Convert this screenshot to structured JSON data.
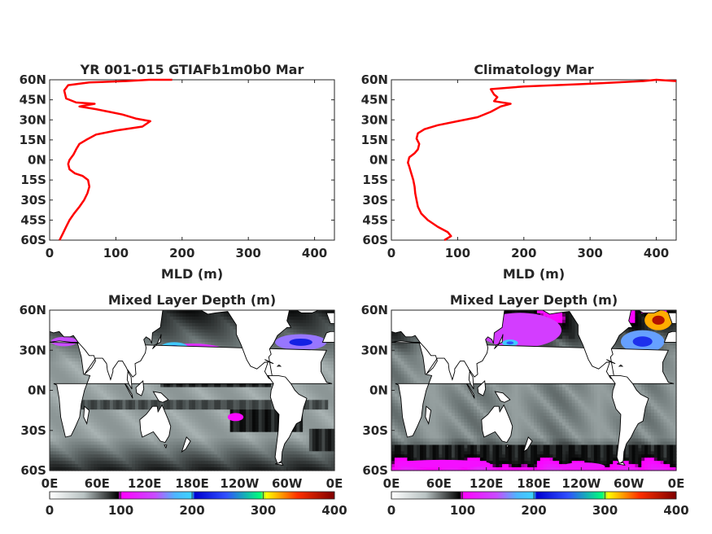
{
  "chart_data": [
    {
      "type": "line",
      "title": "YR 001-015 GTIAFb1m0b0 Mar",
      "xlabel": "MLD (m)",
      "ylabel": "",
      "xlim": [
        0,
        430
      ],
      "ylim": [
        -60,
        60
      ],
      "xticks": [
        0,
        100,
        200,
        300,
        400
      ],
      "yticks": [
        "60N",
        "45N",
        "30N",
        "15N",
        "0N",
        "15S",
        "30S",
        "45S",
        "60S"
      ],
      "series": [
        {
          "color": "#ff0000",
          "points": [
            [
              15,
              -60
            ],
            [
              20,
              -55
            ],
            [
              25,
              -50
            ],
            [
              30,
              -45
            ],
            [
              37,
              -40
            ],
            [
              45,
              -35
            ],
            [
              52,
              -30
            ],
            [
              57,
              -25
            ],
            [
              60,
              -20
            ],
            [
              58,
              -15
            ],
            [
              50,
              -12
            ],
            [
              38,
              -10
            ],
            [
              30,
              -7
            ],
            [
              28,
              -3
            ],
            [
              30,
              0
            ],
            [
              36,
              4
            ],
            [
              40,
              8
            ],
            [
              45,
              12
            ],
            [
              55,
              15
            ],
            [
              70,
              19
            ],
            [
              100,
              22
            ],
            [
              140,
              25
            ],
            [
              152,
              29
            ],
            [
              130,
              31
            ],
            [
              110,
              34
            ],
            [
              90,
              36
            ],
            [
              70,
              38
            ],
            [
              45,
              40
            ],
            [
              68,
              42
            ],
            [
              40,
              43
            ],
            [
              25,
              46
            ],
            [
              22,
              52
            ],
            [
              28,
              56
            ],
            [
              60,
              58
            ],
            [
              115,
              59
            ],
            [
              150,
              60
            ],
            [
              185,
              60
            ]
          ]
        }
      ]
    },
    {
      "type": "line",
      "title": "Climatology Mar",
      "xlabel": "MLD (m)",
      "ylabel": "",
      "xlim": [
        0,
        430
      ],
      "ylim": [
        -60,
        60
      ],
      "xticks": [
        0,
        100,
        200,
        300,
        400
      ],
      "yticks": [
        "60N",
        "45N",
        "30N",
        "15N",
        "0N",
        "15S",
        "30S",
        "45S",
        "60S"
      ],
      "series": [
        {
          "color": "#ff0000",
          "points": [
            [
              80,
              -60
            ],
            [
              90,
              -57
            ],
            [
              85,
              -54
            ],
            [
              70,
              -50
            ],
            [
              55,
              -45
            ],
            [
              45,
              -40
            ],
            [
              40,
              -35
            ],
            [
              38,
              -30
            ],
            [
              36,
              -25
            ],
            [
              35,
              -20
            ],
            [
              33,
              -15
            ],
            [
              30,
              -10
            ],
            [
              27,
              -5
            ],
            [
              25,
              -2
            ],
            [
              27,
              2
            ],
            [
              35,
              5
            ],
            [
              40,
              8
            ],
            [
              42,
              12
            ],
            [
              38,
              16
            ],
            [
              40,
              20
            ],
            [
              50,
              23
            ],
            [
              70,
              26
            ],
            [
              100,
              29
            ],
            [
              130,
              32
            ],
            [
              150,
              36
            ],
            [
              165,
              40
            ],
            [
              180,
              42
            ],
            [
              155,
              44
            ],
            [
              160,
              47
            ],
            [
              155,
              49
            ],
            [
              150,
              53
            ],
            [
              200,
              55
            ],
            [
              300,
              57
            ],
            [
              380,
              59
            ],
            [
              400,
              60
            ],
            [
              430,
              59
            ]
          ]
        }
      ]
    },
    {
      "type": "heatmap",
      "title": "Mixed Layer Depth (m)",
      "xticks": [
        "0E",
        "60E",
        "120E",
        "180E",
        "120W",
        "60W",
        "0E"
      ],
      "yticks": [
        "60N",
        "30N",
        "0N",
        "30S",
        "60S"
      ],
      "colorbar_ticks": [
        0,
        100,
        200,
        300,
        400
      ],
      "colorbar_range": [
        0,
        400
      ],
      "land_color": "#ffffff",
      "high_mld_regions": [
        {
          "lon": [
            130,
            230
          ],
          "lat": [
            18,
            35
          ],
          "value": 130
        },
        {
          "lon": [
            140,
            175
          ],
          "lat": [
            28,
            36
          ],
          "value": 190
        },
        {
          "lon": [
            285,
            350
          ],
          "lat": [
            30,
            42
          ],
          "value": 160
        },
        {
          "lon": [
            265,
            280
          ],
          "lat": [
            15,
            28
          ],
          "value": 110
        },
        {
          "lon": [
            225,
            245
          ],
          "lat": [
            -23,
            -17
          ],
          "value": 105
        },
        {
          "lon": [
            2,
            35
          ],
          "lat": [
            33,
            40
          ],
          "value": 150
        },
        {
          "lon": [
            65,
            70
          ],
          "lat": [
            16,
            22
          ],
          "value": 105
        }
      ],
      "deep_mld_bands": [
        {
          "lon": [
            140,
            280
          ],
          "lat": [
            2,
            10
          ],
          "value": 90
        },
        {
          "lon": [
            40,
            350
          ],
          "lat": [
            -15,
            -8
          ],
          "value": 75
        },
        {
          "lon": [
            230,
            320
          ],
          "lat": [
            -30,
            -15
          ],
          "value": 95
        },
        {
          "lon": [
            330,
            360
          ],
          "lat": [
            -45,
            -30
          ],
          "value": 90
        }
      ]
    },
    {
      "type": "heatmap",
      "title": "Mixed Layer Depth (m)",
      "xticks": [
        "0E",
        "60E",
        "120E",
        "180E",
        "120W",
        "60W",
        "0E"
      ],
      "yticks": [
        "60N",
        "30N",
        "0N",
        "30S",
        "60S"
      ],
      "colorbar_ticks": [
        0,
        100,
        200,
        300,
        400
      ],
      "colorbar_range": [
        0,
        400
      ],
      "land_color": "#ffffff",
      "high_mld_regions": [
        {
          "lon": [
            110,
            215
          ],
          "lat": [
            32,
            58
          ],
          "value": 140
        },
        {
          "lon": [
            140,
            160
          ],
          "lat": [
            33,
            38
          ],
          "value": 190
        },
        {
          "lon": [
            290,
            345
          ],
          "lat": [
            28,
            45
          ],
          "value": 170
        },
        {
          "lon": [
            320,
            355
          ],
          "lat": [
            45,
            60
          ],
          "value": 320
        },
        {
          "lon": [
            5,
            125
          ],
          "lat": [
            -58,
            -52
          ],
          "value": 110
        },
        {
          "lon": [
            215,
            270
          ],
          "lat": [
            -60,
            -54
          ],
          "value": 115
        }
      ],
      "deep_mld_bands": [
        {
          "lon": [
            0,
            360
          ],
          "lat": [
            -60,
            -42
          ],
          "value": 95
        },
        {
          "lon": [
            205,
            280
          ],
          "lat": [
            38,
            60
          ],
          "value": 85
        },
        {
          "lon": [
            320,
            360
          ],
          "lat": [
            50,
            60
          ],
          "value": 95
        }
      ]
    }
  ]
}
